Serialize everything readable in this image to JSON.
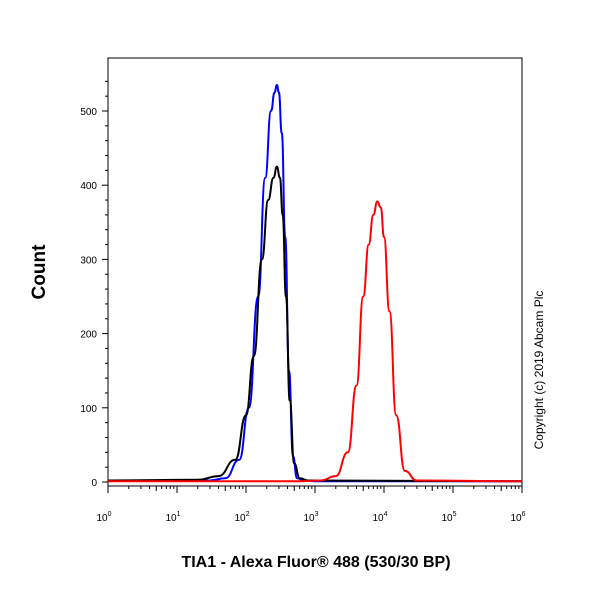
{
  "chart_data": {
    "type": "line",
    "title": "",
    "xlabel": "TIA1 - Alexa Fluor® 488 (530/30 BP)",
    "ylabel": "Count",
    "x_scale": "log",
    "xlim": [
      1,
      1000000
    ],
    "ylim": [
      0,
      560
    ],
    "x_tick_base": "10",
    "x_tick_exponents": [
      "0",
      "1",
      "2",
      "3",
      "4",
      "5",
      "6"
    ],
    "y_ticks": [
      0,
      100,
      200,
      300,
      400,
      500
    ],
    "y_tick_labels": [
      "0",
      "100",
      "200",
      "300",
      "400",
      "500"
    ],
    "grid": false,
    "legend": "none",
    "annotation": "Copyright (c) 2019 Abcam Plc",
    "series": [
      {
        "color": "#0000ff",
        "x": [
          1,
          30,
          50,
          80,
          110,
          150,
          190,
          230,
          260,
          280,
          300,
          330,
          370,
          420,
          480,
          550,
          700,
          1000,
          10000,
          1000000
        ],
        "y": [
          2,
          2,
          5,
          30,
          100,
          250,
          410,
          500,
          525,
          535,
          525,
          470,
          330,
          150,
          35,
          5,
          2,
          1,
          1,
          1
        ]
      },
      {
        "color": "#000000",
        "x": [
          1,
          20,
          40,
          70,
          100,
          130,
          170,
          210,
          250,
          280,
          310,
          340,
          380,
          430,
          500,
          600,
          800,
          1000000
        ],
        "y": [
          2,
          3,
          8,
          30,
          90,
          170,
          300,
          380,
          410,
          425,
          410,
          360,
          250,
          110,
          25,
          5,
          2,
          1
        ]
      },
      {
        "color": "#ff0000",
        "x": [
          1,
          600,
          1200,
          2000,
          3000,
          4000,
          5000,
          6000,
          7000,
          8000,
          9000,
          10000,
          12000,
          15000,
          20000,
          30000,
          1000000
        ],
        "y": [
          1,
          1,
          2,
          8,
          40,
          130,
          250,
          320,
          360,
          378,
          370,
          330,
          230,
          90,
          15,
          2,
          1
        ]
      }
    ]
  }
}
